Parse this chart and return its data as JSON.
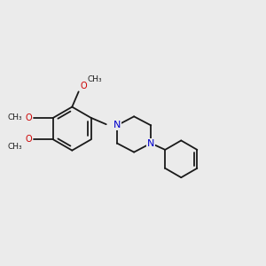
{
  "bg_color": "#ebebeb",
  "bond_color": "#1a1a1a",
  "N_color": "#0000cc",
  "O_color": "#cc0000",
  "line_width": 1.3,
  "font_size": 7.0,
  "fig_size": [
    3.0,
    3.0
  ],
  "dpi": 100,
  "xlim": [
    0,
    12
  ],
  "ylim": [
    0,
    12
  ]
}
